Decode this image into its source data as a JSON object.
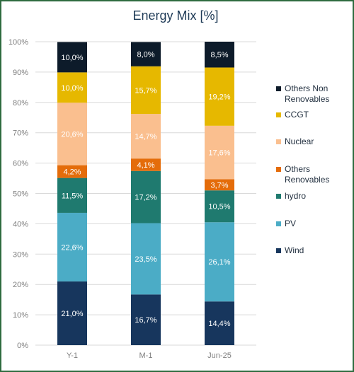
{
  "chart_data": {
    "type": "bar",
    "stacked": true,
    "title": "Energy Mix [%]",
    "categories": [
      "Y-1",
      "M-1",
      "Jun-25"
    ],
    "ylim": [
      0,
      100
    ],
    "yticks": [
      "0%",
      "10%",
      "20%",
      "30%",
      "40%",
      "50%",
      "60%",
      "70%",
      "80%",
      "90%",
      "100%"
    ],
    "grid": true,
    "legend_position": "right",
    "series": [
      {
        "name": "Wind",
        "color": "#17365d",
        "label_color": "#ffffff",
        "values": [
          21.0,
          16.7,
          14.4
        ],
        "labels": [
          "21,0%",
          "16,7%",
          "14,4%"
        ]
      },
      {
        "name": "PV",
        "color": "#4bacc6",
        "label_color": "#ffffff",
        "values": [
          22.6,
          23.5,
          26.1
        ],
        "labels": [
          "22,6%",
          "23,5%",
          "26,1%"
        ]
      },
      {
        "name": "hydro",
        "color": "#1f7a6f",
        "label_color": "#ffffff",
        "values": [
          11.5,
          17.2,
          10.5
        ],
        "labels": [
          "11,5%",
          "17,2%",
          "10,5%"
        ]
      },
      {
        "name": "Others Renovables",
        "color": "#e46c0a",
        "label_color": "#ffffff",
        "values": [
          4.2,
          4.1,
          3.7
        ],
        "labels": [
          "4,2%",
          "4,1%",
          "3,7%"
        ]
      },
      {
        "name": "Nuclear",
        "color": "#fabf8f",
        "label_color": "#ffffff",
        "values": [
          20.6,
          14.7,
          17.6
        ],
        "labels": [
          "20,6%",
          "14,7%",
          "17,6%"
        ]
      },
      {
        "name": "CCGT",
        "color": "#e6b800",
        "label_color": "#ffffff",
        "values": [
          10.0,
          15.7,
          19.2
        ],
        "labels": [
          "10,0%",
          "15,7%",
          "19,2%"
        ]
      },
      {
        "name": "Others Non Renovables",
        "color": "#0d1b2a",
        "label_color": "#ffffff",
        "values": [
          10.0,
          8.0,
          8.5
        ],
        "labels": [
          "10,0%",
          "8,0%",
          "8,5%"
        ]
      }
    ]
  }
}
